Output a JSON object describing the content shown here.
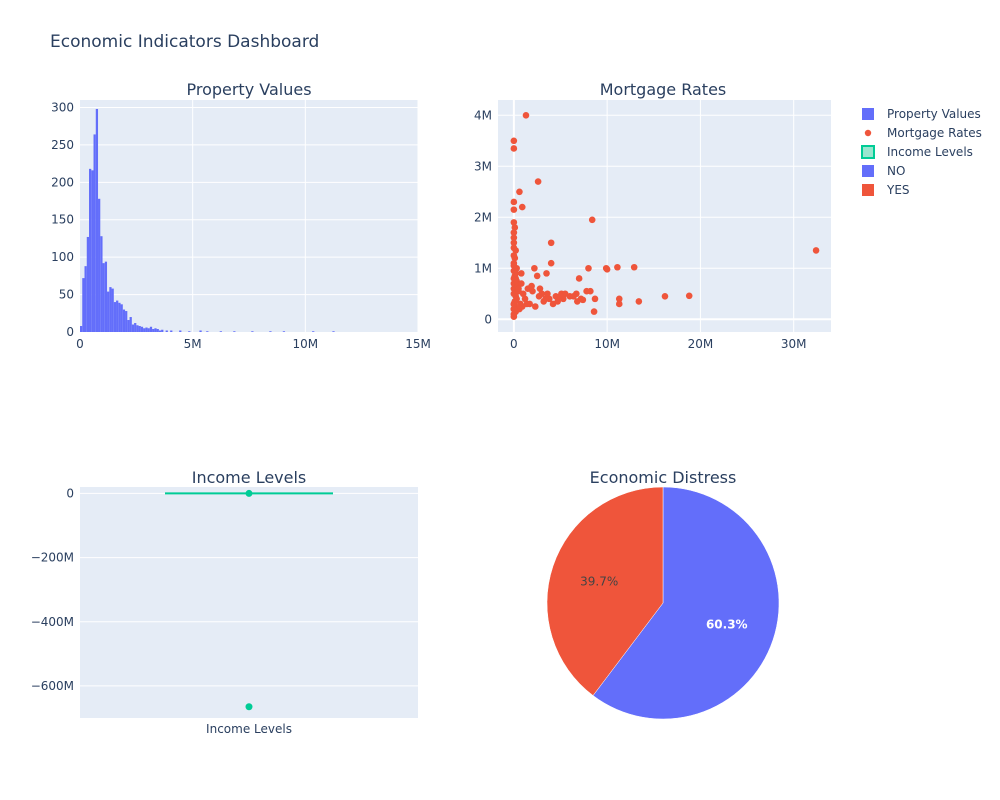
{
  "dashboard": {
    "title": "Economic Indicators Dashboard"
  },
  "colors": {
    "plot_bg": "#e5ecf6",
    "blue": "#636efa",
    "red": "#ef553b",
    "green": "#00cc96"
  },
  "legend": {
    "placement": "top-right",
    "items": [
      {
        "label": "Property Values",
        "symbol": "bar-icon",
        "color": "#636efa"
      },
      {
        "label": "Mortgage Rates",
        "symbol": "dot-icon",
        "color": "#ef553b"
      },
      {
        "label": "Income Levels",
        "symbol": "box-icon",
        "color": "#00cc96"
      },
      {
        "label": "NO",
        "symbol": "bar-icon",
        "color": "#636efa"
      },
      {
        "label": "YES",
        "symbol": "bar-icon",
        "color": "#ef553b"
      }
    ]
  },
  "chart_data": [
    {
      "type": "bar",
      "title": "Property Values",
      "xlabel": "",
      "ylabel": "",
      "xlim": [
        0,
        15000000
      ],
      "ylim": [
        0,
        310
      ],
      "xticks": [
        "0",
        "5M",
        "10M",
        "15M"
      ],
      "xtick_values": [
        0,
        5000000,
        10000000,
        15000000
      ],
      "yticks": [
        "0",
        "50",
        "100",
        "150",
        "200",
        "250",
        "300"
      ],
      "ytick_values": [
        0,
        50,
        100,
        150,
        200,
        250,
        300
      ],
      "bin_width": 100000,
      "bins_start": [
        0,
        100000,
        200000,
        300000,
        400000,
        500000,
        600000,
        700000,
        800000,
        900000,
        1000000,
        1100000,
        1200000,
        1300000,
        1400000,
        1500000,
        1600000,
        1700000,
        1800000,
        1900000,
        2000000,
        2100000,
        2200000,
        2300000,
        2400000,
        2500000,
        2600000,
        2700000,
        2800000,
        2900000,
        3000000,
        3100000,
        3200000,
        3300000,
        3400000,
        3500000,
        3600000,
        3800000,
        4000000,
        4400000,
        4800000,
        5300000,
        5600000,
        6200000,
        6800000,
        7600000,
        8400000,
        9000000,
        10300000,
        11200000
      ],
      "values": [
        8,
        72,
        88,
        127,
        218,
        216,
        264,
        298,
        178,
        128,
        92,
        94,
        54,
        60,
        58,
        40,
        42,
        39,
        37,
        30,
        28,
        16,
        20,
        10,
        12,
        9,
        8,
        7,
        5,
        6,
        5,
        7,
        4,
        5,
        4,
        2,
        3,
        2,
        2,
        2,
        1,
        2,
        1,
        1,
        1,
        1,
        1,
        1,
        1,
        1
      ],
      "grid": true
    },
    {
      "type": "scatter",
      "title": "Mortgage Rates",
      "xlabel": "",
      "ylabel": "",
      "xlim": [
        -1700000,
        34000000
      ],
      "ylim": [
        -250000,
        4300000
      ],
      "xticks": [
        "0",
        "10M",
        "20M",
        "30M"
      ],
      "xtick_values": [
        0,
        10000000,
        20000000,
        30000000
      ],
      "yticks": [
        "0",
        "1M",
        "2M",
        "3M",
        "4M"
      ],
      "ytick_values": [
        0,
        1000000,
        2000000,
        3000000,
        4000000
      ],
      "series": [
        {
          "name": "Mortgage Rates",
          "x": [
            1300000,
            0,
            0,
            600000,
            2600000,
            900000,
            0,
            0,
            8400000,
            0,
            100000,
            4000000,
            0,
            0,
            200000,
            0,
            100000,
            0,
            0,
            4000000,
            2200000,
            800000,
            0,
            300000,
            12900000,
            11100000,
            9900000,
            8000000,
            7000000,
            3500000,
            2500000,
            100000,
            200000,
            0,
            32400000,
            0,
            0,
            400000,
            500000,
            1000000,
            1500000,
            2000000,
            3000000,
            3800000,
            4500000,
            5100000,
            5500000,
            6000000,
            6700000,
            7200000,
            8200000,
            8700000,
            10000000,
            11300000,
            13400000,
            16200000,
            18800000,
            8600000,
            11300000,
            4200000,
            3200000,
            2300000,
            1700000,
            1200000,
            700000,
            300000,
            0,
            0,
            0,
            100000,
            200000,
            600000,
            900000,
            1400000,
            2700000,
            3400000,
            4700000,
            5300000,
            6400000,
            7400000,
            0,
            100000,
            400000,
            0,
            200000,
            0,
            0,
            300000,
            800000,
            1900000,
            2800000,
            3600000,
            5000000,
            6800000,
            7800000,
            0,
            0,
            100000,
            200000,
            500000
          ],
          "y": [
            4000000,
            3500000,
            3350000,
            2500000,
            2700000,
            2200000,
            2300000,
            2150000,
            1950000,
            1900000,
            1800000,
            1500000,
            1600000,
            1400000,
            1350000,
            1250000,
            1200000,
            1100000,
            1050000,
            1100000,
            1000000,
            900000,
            950000,
            1000000,
            1020000,
            1020000,
            1000000,
            1000000,
            800000,
            900000,
            850000,
            850000,
            800000,
            700000,
            1350000,
            600000,
            500000,
            600000,
            550000,
            500000,
            600000,
            550000,
            500000,
            400000,
            450000,
            500000,
            500000,
            450000,
            500000,
            400000,
            550000,
            400000,
            980000,
            300000,
            350000,
            450000,
            460000,
            150000,
            400000,
            300000,
            350000,
            250000,
            300000,
            400000,
            300000,
            400000,
            300000,
            200000,
            100000,
            250000,
            150000,
            200000,
            250000,
            300000,
            450000,
            400000,
            350000,
            400000,
            450000,
            380000,
            50000,
            700000,
            650000,
            800000,
            900000,
            1500000,
            1700000,
            750000,
            700000,
            650000,
            600000,
            500000,
            450000,
            350000,
            550000,
            300000,
            200000,
            350000,
            450000,
            600000
          ],
          "color": "#ef553b"
        }
      ],
      "grid": true
    },
    {
      "type": "box",
      "title": "Income Levels",
      "xlabel": "",
      "ylabel": "",
      "categories": [
        "Income Levels"
      ],
      "ylim": [
        -700000000,
        20000000
      ],
      "yticks": [
        "0",
        "−200M",
        "−400M",
        "−600M"
      ],
      "ytick_values": [
        0,
        -200000000,
        -400000000,
        -600000000
      ],
      "median": 0,
      "q1": 0,
      "q3": 0,
      "lower_fence": 0,
      "upper_fence": 0,
      "outliers": [
        0,
        -665000000
      ],
      "color": "#00cc96",
      "grid": true
    },
    {
      "type": "pie",
      "title": "Economic Distress",
      "labels": [
        "NO",
        "YES"
      ],
      "values": [
        60.3,
        39.7
      ],
      "text": [
        "60.3%",
        "39.7%"
      ],
      "colors": [
        "#636efa",
        "#ef553b"
      ]
    }
  ]
}
